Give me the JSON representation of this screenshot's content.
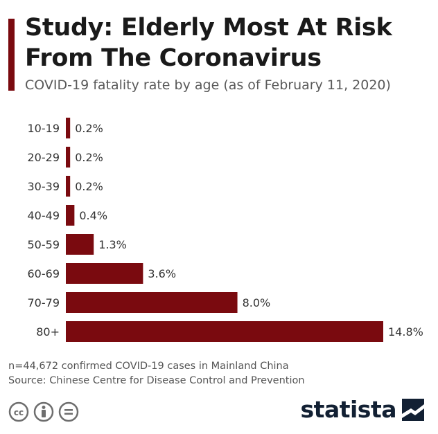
{
  "header": {
    "title": "Study: Elderly Most At Risk From The Coronavirus",
    "subtitle": "COVID-19 fatality rate by age (as of February 11, 2020)"
  },
  "chart_data": {
    "type": "bar",
    "orientation": "horizontal",
    "categories": [
      "10-19",
      "20-29",
      "30-39",
      "40-49",
      "50-59",
      "60-69",
      "70-79",
      "80+"
    ],
    "values": [
      0.2,
      0.2,
      0.2,
      0.4,
      1.3,
      3.6,
      8.0,
      14.8
    ],
    "value_labels": [
      "0.2%",
      "0.2%",
      "0.2%",
      "0.4%",
      "1.3%",
      "3.6%",
      "8.0%",
      "14.8%"
    ],
    "unit": "%",
    "xlim": [
      0,
      14.8
    ],
    "grid": false,
    "bar_color": "#7a0a0f"
  },
  "footer": {
    "note": "n=44,672 confirmed COVID-19 cases in Mainland China",
    "source": "Source: Chinese Centre for Disease Control and Prevention",
    "logo_text": "statista",
    "license_icons": [
      "creative-commons-icon",
      "attribution-icon",
      "no-derivatives-icon"
    ]
  },
  "colors": {
    "accent": "#7a0a0f",
    "title": "#1a1a1a",
    "subtitle": "#595959",
    "logo": "#122033"
  }
}
